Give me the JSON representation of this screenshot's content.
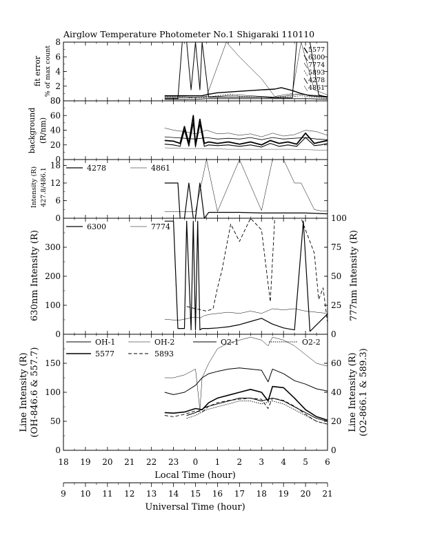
{
  "figure": {
    "title": "Airglow Temperature Photometer No.1  Shigaraki   110110",
    "xlabel_local": "Local Time (hour)",
    "xlabel_ut": "Universal Time (hour)",
    "local_ticks": [
      "18",
      "19",
      "20",
      "21",
      "22",
      "23",
      "0",
      "1",
      "2",
      "3",
      "4",
      "5",
      "6"
    ],
    "ut_ticks": [
      "9",
      "10",
      "11",
      "12",
      "13",
      "14",
      "15",
      "16",
      "17",
      "18",
      "19",
      "20",
      "21"
    ]
  },
  "panels": {
    "fit": {
      "ylabel1": "fit error",
      "ylabel2": "% of max count",
      "legend": [
        "5577",
        "6300",
        "7774",
        "5893",
        "4278",
        "4861"
      ]
    },
    "bg": {
      "ylabel1": "background",
      "ylabel2": "(R/nm)"
    },
    "blue": {
      "ylabel1": "Intensity (R)",
      "ylabel2": "427.8/486.1",
      "legend": [
        "4278",
        "4861"
      ]
    },
    "red": {
      "ylabel": "630nm Intensity  (R)",
      "ylabel_right": "777nm Intensity  (R)",
      "legend": [
        "6300",
        "7774"
      ]
    },
    "line": {
      "ylabel1": "Line Intensity (R)",
      "ylabel2": "(OH-846.6 & 557.7)",
      "ylabel_right1": "Line Intensity (R)",
      "ylabel_right2": "(O2-866.1 & 589.3)",
      "legend": [
        "OH-1",
        "OH-2",
        "O2-1",
        "O2-2",
        "5577",
        "5893"
      ]
    }
  },
  "chart_data": [
    {
      "type": "line",
      "title": "Airglow Temperature Photometer No.1  Shigaraki   110110",
      "panel": "fit",
      "xlabel": "Local Time (hour)",
      "ylabel": "fit error % of max count",
      "xlim": [
        18,
        30
      ],
      "ylim": [
        0,
        8
      ],
      "yticks": [
        0,
        2,
        4,
        6,
        8
      ],
      "series": [
        {
          "name": "5577",
          "x": [
            22.6,
            23.0,
            23.3,
            23.5,
            23.7,
            23.9,
            24.1,
            24.3,
            24.6,
            25.0,
            26.0,
            27.0,
            27.6,
            27.9,
            28.4,
            28.8,
            29.2,
            29.6,
            30.0
          ],
          "y": [
            0.7,
            0.7,
            0.7,
            0.7,
            0.7,
            0.7,
            0.7,
            0.7,
            0.9,
            1.1,
            1.3,
            1.5,
            1.6,
            1.8,
            1.4,
            1.0,
            0.7,
            0.6,
            0.5
          ]
        },
        {
          "name": "6300",
          "x": [
            22.6,
            23.2,
            23.4,
            23.6,
            23.8,
            24.0,
            24.2,
            24.3,
            24.6,
            25.0,
            26.0,
            27.0,
            27.6,
            28.4,
            28.6,
            29.2,
            29.6,
            30.0
          ],
          "y": [
            0.3,
            0.3,
            8.0,
            8.0,
            1.5,
            8.0,
            1.5,
            8.0,
            0.5,
            0.5,
            0.5,
            0.5,
            0.4,
            0.4,
            8.0,
            8.0,
            0.8,
            0.5
          ]
        },
        {
          "name": "7774",
          "x": [
            22.6,
            23.2,
            24.0,
            25.0,
            26.0,
            27.0,
            27.6,
            28.0,
            28.6,
            29.2,
            30.0
          ],
          "y": [
            0.4,
            0.4,
            0.5,
            0.6,
            0.8,
            0.6,
            0.5,
            0.6,
            0.9,
            0.8,
            0.6
          ]
        },
        {
          "name": "5893",
          "x": [
            22.6,
            23.4,
            23.8,
            24.3,
            25.0,
            25.6,
            26.0,
            27.0,
            28.0,
            28.8,
            29.4,
            30.0
          ],
          "y": [
            0.5,
            0.5,
            0.4,
            0.4,
            0.7,
            0.9,
            0.6,
            0.5,
            0.5,
            0.7,
            0.5,
            0.3
          ]
        },
        {
          "name": "4278",
          "x": [
            22.6,
            23.4,
            24.0,
            24.5,
            25.0,
            26.0,
            27.0,
            27.6,
            28.0,
            28.6,
            29.2,
            30.0
          ],
          "y": [
            0.2,
            0.2,
            0.2,
            0.3,
            0.3,
            0.3,
            0.3,
            0.3,
            0.3,
            0.3,
            0.3,
            0.2
          ]
        },
        {
          "name": "4861",
          "x": [
            22.6,
            23.4,
            24.0,
            24.5,
            25.4,
            26.0,
            27.0,
            27.6,
            28.4,
            28.8,
            29.4,
            30.0
          ],
          "y": [
            0.6,
            0.6,
            0.5,
            0.6,
            8.0,
            6.0,
            3.0,
            0.6,
            1.0,
            8.0,
            1.5,
            0.8
          ]
        }
      ]
    },
    {
      "type": "line",
      "panel": "bg",
      "ylabel": "background (R/nm)",
      "xlim": [
        18,
        30
      ],
      "ylim": [
        0,
        80
      ],
      "yticks": [
        0,
        20,
        40,
        60,
        80
      ],
      "series": [
        {
          "x": [
            22.6,
            23.0,
            23.3,
            23.5,
            23.7,
            23.9,
            24.0,
            24.2,
            24.4,
            24.6,
            25.0,
            25.5,
            26.0,
            26.5,
            27.0,
            27.4,
            27.8,
            28.2,
            28.6,
            29.0,
            29.4,
            29.7,
            30.0
          ],
          "y": [
            26,
            25,
            22,
            45,
            22,
            60,
            20,
            55,
            22,
            24,
            22,
            24,
            21,
            24,
            20,
            26,
            22,
            24,
            21,
            36,
            22,
            24,
            26
          ]
        },
        {
          "x": [
            22.6,
            23.0,
            23.3,
            23.5,
            23.7,
            23.9,
            24.0,
            24.2,
            24.4,
            24.6,
            25.0,
            25.5,
            26.0,
            26.5,
            27.0,
            27.4,
            27.8,
            28.2,
            28.6,
            29.0,
            29.4,
            29.7,
            30.0
          ],
          "y": [
            21,
            20,
            18,
            40,
            18,
            50,
            17,
            48,
            18,
            20,
            19,
            20,
            18,
            20,
            17,
            22,
            18,
            20,
            18,
            30,
            19,
            20,
            22
          ]
        },
        {
          "x": [
            22.6,
            23.0,
            23.5,
            24.0,
            24.5,
            25.0,
            25.5,
            26.0,
            26.5,
            27.0,
            27.5,
            28.0,
            28.5,
            29.0,
            29.5,
            30.0
          ],
          "y": [
            43,
            40,
            38,
            35,
            40,
            35,
            36,
            33,
            35,
            31,
            36,
            32,
            34,
            40,
            38,
            33
          ]
        },
        {
          "x": [
            22.6,
            23.0,
            23.5,
            24.0,
            24.5,
            25.0,
            25.5,
            26.0,
            26.5,
            27.0,
            27.5,
            28.0,
            28.5,
            29.0,
            29.5,
            30.0
          ],
          "y": [
            31,
            30,
            29,
            28,
            30,
            28,
            29,
            28,
            30,
            27,
            30,
            28,
            29,
            30,
            28,
            27
          ]
        },
        {
          "x": [
            22.6,
            23.5,
            24.5,
            25.5,
            26.5,
            27.5,
            28.5,
            29.5,
            30.0
          ],
          "y": [
            16,
            15,
            15,
            14,
            14,
            14,
            14,
            13,
            13
          ]
        }
      ]
    },
    {
      "type": "line",
      "panel": "blue",
      "ylabel": "Intensity (R) 427.8/486.1",
      "xlim": [
        18,
        30
      ],
      "ylim": [
        0,
        20
      ],
      "yticks": [
        0,
        6,
        12,
        18
      ],
      "series": [
        {
          "name": "4278",
          "x": [
            22.6,
            23.0,
            23.2,
            23.3,
            23.5,
            23.7,
            23.9,
            24.0,
            24.2,
            24.4,
            24.6,
            25.0,
            26.0,
            27.0,
            28.0,
            29.0,
            30.0
          ],
          "y": [
            12,
            12,
            12,
            0,
            0,
            12,
            0,
            0,
            12,
            0,
            2,
            2,
            2,
            1.8,
            1.8,
            1.8,
            1.5
          ]
        },
        {
          "name": "4861",
          "x": [
            22.6,
            23.3,
            23.5,
            24.0,
            24.5,
            25.0,
            26.0,
            27.0,
            27.5,
            28.0,
            28.5,
            28.8,
            29.4,
            29.7,
            30.0
          ],
          "y": [
            2.3,
            2.3,
            2.3,
            2.2,
            20,
            2.3,
            20,
            2.6,
            20,
            20,
            12,
            12,
            3.0,
            2.5,
            2.4
          ]
        }
      ]
    },
    {
      "type": "line",
      "panel": "red",
      "ylabel": "630nm Intensity  (R)",
      "ylabel_right": "777nm Intensity  (R)",
      "xlim": [
        18,
        30
      ],
      "ylim": [
        0,
        400
      ],
      "ylim_right": [
        0,
        100
      ],
      "yticks": [
        0,
        100,
        200,
        300
      ],
      "yticks_right": [
        0,
        25,
        50,
        75,
        100
      ],
      "series": [
        {
          "name": "6300",
          "x": [
            22.6,
            23.0,
            23.2,
            23.5,
            23.6,
            23.8,
            23.9,
            24.0,
            24.1,
            24.2,
            24.3,
            24.6,
            25.0,
            25.5,
            26.0,
            26.5,
            27.0,
            27.5,
            28.0,
            28.5,
            28.9,
            29.2,
            29.6,
            30.0
          ],
          "y": [
            390,
            390,
            20,
            20,
            390,
            15,
            390,
            15,
            390,
            15,
            20,
            20,
            22,
            26,
            33,
            44,
            55,
            35,
            22,
            15,
            390,
            10,
            40,
            70
          ]
        },
        {
          "name": "7774",
          "x": [
            22.6,
            23.2,
            23.5,
            24.0,
            24.2,
            24.4,
            24.6,
            25.0,
            25.5,
            26.0,
            26.5,
            27.0,
            27.5,
            28.0,
            28.5,
            29.0,
            29.5,
            30.0
          ],
          "y": [
            13,
            12,
            13,
            15,
            14,
            16,
            17,
            18,
            19,
            18,
            20,
            18,
            22,
            21,
            22,
            20,
            19,
            18
          ],
          "axis": "right"
        },
        {
          "name": "5893",
          "x": [
            23.6,
            24.0,
            24.5,
            24.8,
            25.0,
            25.2,
            25.6,
            26.0,
            26.5,
            27.0,
            27.4,
            27.6,
            28.0,
            28.5,
            28.8,
            29.0,
            29.4,
            29.6,
            29.8,
            30.0
          ],
          "y": [
            24,
            22,
            20,
            22,
            40,
            55,
            95,
            80,
            100,
            90,
            28,
            100,
            100,
            100,
            100,
            90,
            70,
            30,
            40,
            10
          ],
          "axis": "right",
          "style": "dashed"
        }
      ]
    },
    {
      "type": "line",
      "panel": "line",
      "ylabel": "Line Intensity (R) (OH-846.6 & 557.7)",
      "ylabel_right": "Line Intensity (R) (O2-866.1 & 589.3)",
      "xlim": [
        18,
        30
      ],
      "ylim": [
        0,
        200
      ],
      "ylim_right": [
        0,
        80
      ],
      "yticks": [
        0,
        50,
        100,
        150
      ],
      "yticks_right": [
        0,
        20,
        40,
        60
      ],
      "series": [
        {
          "name": "OH-1",
          "x": [
            22.6,
            23.0,
            23.5,
            24.0,
            24.3,
            24.6,
            25.0,
            25.5,
            26.0,
            26.5,
            27.0,
            27.3,
            27.5,
            28.0,
            28.5,
            29.0,
            29.5,
            30.0
          ],
          "y": [
            100,
            96,
            100,
            112,
            125,
            132,
            136,
            140,
            142,
            140,
            138,
            118,
            140,
            132,
            120,
            114,
            106,
            102
          ]
        },
        {
          "name": "OH-2",
          "x": [
            22.6,
            23.0,
            23.5,
            24.0,
            24.2,
            24.3,
            24.6,
            25.0,
            25.5,
            26.0,
            26.5,
            27.0,
            27.3,
            27.5,
            28.0,
            28.5,
            29.0,
            29.5,
            30.0
          ],
          "y": [
            50,
            50,
            52,
            56,
            28,
            50,
            60,
            70,
            74,
            76,
            78,
            76,
            72,
            78,
            76,
            72,
            66,
            60,
            58
          ],
          "axis": "right"
        },
        {
          "name": "O2-1",
          "x": [
            23.6,
            24.0,
            24.5,
            25.0,
            25.5,
            26.0,
            26.5,
            27.0,
            27.5,
            28.0,
            28.5,
            29.0,
            29.5,
            30.0
          ],
          "y": [
            24,
            26,
            30,
            32,
            34,
            36,
            36,
            34,
            36,
            34,
            30,
            26,
            22,
            20
          ],
          "axis": "right"
        },
        {
          "name": "O2-2",
          "x": [
            23.6,
            24.0,
            24.5,
            25.0,
            25.5,
            26.0,
            26.5,
            27.0,
            27.5,
            28.0,
            28.5,
            29.0,
            29.5,
            30.0
          ],
          "y": [
            22,
            24,
            28,
            30,
            32,
            34,
            34,
            32,
            34,
            32,
            28,
            24,
            20,
            18
          ],
          "axis": "right",
          "style": "dotted"
        },
        {
          "name": "5577",
          "x": [
            22.6,
            23.0,
            23.5,
            24.0,
            24.3,
            24.6,
            25.0,
            25.5,
            26.0,
            26.5,
            27.0,
            27.3,
            27.5,
            28.0,
            28.5,
            29.0,
            29.5,
            30.0
          ],
          "y": [
            65,
            64,
            66,
            72,
            70,
            82,
            90,
            95,
            100,
            105,
            100,
            85,
            110,
            108,
            90,
            70,
            58,
            52
          ]
        },
        {
          "name": "5893",
          "x": [
            22.6,
            23.0,
            23.5,
            24.0,
            24.3,
            24.6,
            25.0,
            25.5,
            26.0,
            26.5,
            27.0,
            27.3,
            27.5,
            28.0,
            28.5,
            29.0,
            29.5,
            30.0
          ],
          "y": [
            60,
            58,
            62,
            68,
            66,
            76,
            82,
            86,
            88,
            90,
            88,
            72,
            90,
            86,
            76,
            62,
            50,
            45
          ],
          "style": "dashed"
        }
      ]
    }
  ]
}
